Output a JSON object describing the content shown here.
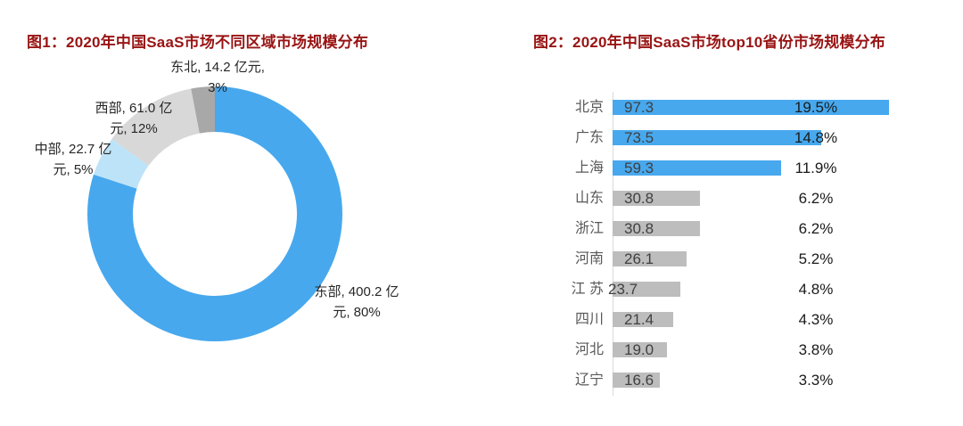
{
  "colors": {
    "title_text": "#991414",
    "axis_line": "#D9D9D9",
    "category_text": "#595959",
    "value_text": "#404040",
    "percent_text": "#1A1A1A",
    "pie_label_text": "#262626",
    "accent_blue": "#47A8EE",
    "pale_blue": "#BDE3F8",
    "light_gray": "#D8D8D8",
    "dark_gray": "#A8A8A8",
    "bar_gray": "#BDBDBD"
  },
  "chart_data": [
    {
      "type": "pie",
      "donut": true,
      "inner_radius_ratio": 0.64,
      "title": "图1：2020年中国SaaS市场不同区域市场规模分布",
      "start_angle_deg": 0,
      "direction": "clockwise",
      "legend": "none",
      "segments": [
        {
          "name": "东部",
          "value": 400.2,
          "pct": 80,
          "color": "#47A8EE",
          "label_line1": "东部, 400.2 亿",
          "label_line2": "元, 80%"
        },
        {
          "name": "中部",
          "value": 22.7,
          "pct": 5,
          "color": "#BDE3F8",
          "label_line1": "中部, 22.7 亿",
          "label_line2": "元, 5%"
        },
        {
          "name": "西部",
          "value": 61.0,
          "pct": 12,
          "color": "#D8D8D8",
          "label_line1": "西部, 61.0 亿",
          "label_line2": "元, 12%"
        },
        {
          "name": "东北",
          "value": 14.2,
          "pct": 3,
          "color": "#A8A8A8",
          "label_line1": "东北, 14.2 亿元,",
          "label_line2": "3%"
        }
      ]
    },
    {
      "type": "bar",
      "orientation": "horizontal",
      "title": "图2：2020年中国SaaS市场top10省份市场规模分布",
      "categories": [
        "北京",
        "广东",
        "上海",
        "山东",
        "浙江",
        "河南",
        "江 苏",
        "四川",
        "河北",
        "辽宁"
      ],
      "values": [
        97.3,
        73.5,
        59.3,
        30.8,
        30.8,
        26.1,
        23.7,
        21.4,
        19.0,
        16.6
      ],
      "pct_labels": [
        "19.5%",
        "14.8%",
        "11.9%",
        "6.2%",
        "6.2%",
        "5.2%",
        "4.8%",
        "4.3%",
        "3.8%",
        "3.3%"
      ],
      "bar_colors": [
        "#47A8EE",
        "#47A8EE",
        "#47A8EE",
        "#BDBDBD",
        "#BDBDBD",
        "#BDBDBD",
        "#BDBDBD",
        "#BDBDBD",
        "#BDBDBD",
        "#BDBDBD"
      ],
      "value_label_dx": [
        13,
        13,
        13,
        13,
        13,
        13,
        -5,
        13,
        13,
        13
      ],
      "xlim": [
        0,
        100
      ],
      "grid": "off",
      "legend": "none"
    }
  ]
}
